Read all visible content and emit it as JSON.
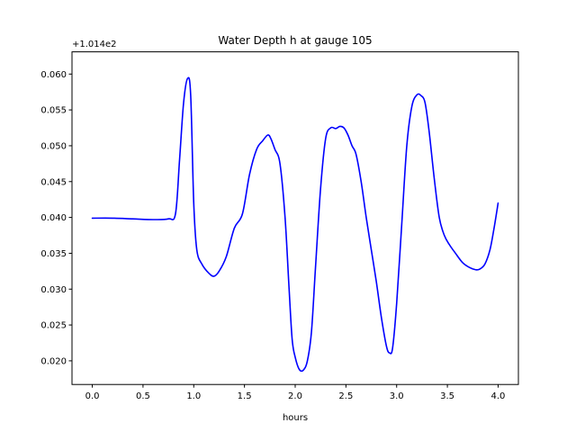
{
  "chart_data": {
    "type": "line",
    "title": "Water Depth h at gauge 105",
    "xlabel": "hours",
    "ylabel": "",
    "offset_label": "+1.014e2",
    "xlim": [
      -0.2,
      4.2
    ],
    "ylim": [
      0.0167,
      0.0631
    ],
    "xticks": [
      0.0,
      0.5,
      1.0,
      1.5,
      2.0,
      2.5,
      3.0,
      3.5,
      4.0
    ],
    "xtick_labels": [
      "0.0",
      "0.5",
      "1.0",
      "1.5",
      "2.0",
      "2.5",
      "3.0",
      "3.5",
      "4.0"
    ],
    "yticks": [
      0.02,
      0.025,
      0.03,
      0.035,
      0.04,
      0.045,
      0.05,
      0.055,
      0.06
    ],
    "ytick_labels": [
      "0.020",
      "0.025",
      "0.030",
      "0.035",
      "0.040",
      "0.045",
      "0.050",
      "0.055",
      "0.060"
    ],
    "grid": false,
    "series": [
      {
        "color": "#0000ff",
        "x": [
          0.0,
          0.2,
          0.4,
          0.6,
          0.75,
          0.82,
          0.86,
          0.9,
          0.94,
          0.97,
          1.0,
          1.03,
          1.08,
          1.15,
          1.2,
          1.25,
          1.32,
          1.4,
          1.48,
          1.55,
          1.62,
          1.68,
          1.73,
          1.76,
          1.8,
          1.85,
          1.9,
          1.94,
          1.97,
          2.0,
          2.04,
          2.08,
          2.12,
          2.16,
          2.2,
          2.25,
          2.3,
          2.35,
          2.4,
          2.44,
          2.48,
          2.52,
          2.56,
          2.6,
          2.65,
          2.7,
          2.75,
          2.8,
          2.85,
          2.9,
          2.93,
          2.96,
          3.0,
          3.05,
          3.1,
          3.15,
          3.2,
          3.24,
          3.28,
          3.32,
          3.37,
          3.42,
          3.47,
          3.52,
          3.58,
          3.65,
          3.72,
          3.78,
          3.82,
          3.87,
          3.92,
          3.96,
          4.0
        ],
        "y": [
          0.0399,
          0.0399,
          0.0398,
          0.0397,
          0.0398,
          0.0405,
          0.048,
          0.056,
          0.0594,
          0.057,
          0.042,
          0.0355,
          0.0335,
          0.0322,
          0.0318,
          0.0325,
          0.0345,
          0.0385,
          0.0405,
          0.046,
          0.0495,
          0.0507,
          0.0515,
          0.051,
          0.0495,
          0.0475,
          0.04,
          0.03,
          0.023,
          0.0205,
          0.0188,
          0.0187,
          0.02,
          0.024,
          0.033,
          0.044,
          0.051,
          0.0525,
          0.0524,
          0.0527,
          0.0525,
          0.0515,
          0.05,
          0.0488,
          0.045,
          0.04,
          0.0355,
          0.031,
          0.026,
          0.022,
          0.0211,
          0.0218,
          0.028,
          0.039,
          0.05,
          0.0555,
          0.0571,
          0.057,
          0.056,
          0.052,
          0.0455,
          0.04,
          0.0375,
          0.0362,
          0.035,
          0.0337,
          0.033,
          0.0327,
          0.0328,
          0.0335,
          0.0355,
          0.0385,
          0.042
        ]
      }
    ]
  }
}
